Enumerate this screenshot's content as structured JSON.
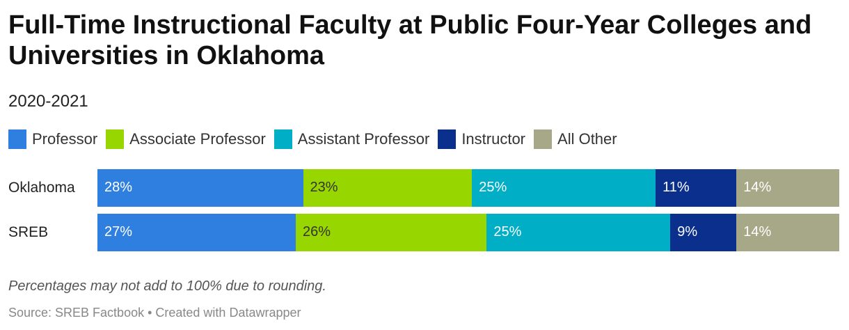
{
  "title": "Full-Time Instructional Faculty at Public Four-Year Colleges and Universities in Oklahoma",
  "subtitle": "2020-2021",
  "note": "Percentages may not add to 100% due to rounding.",
  "source": "Source: SREB Factbook • Created with Datawrapper",
  "chart_data": {
    "type": "bar",
    "stacked": true,
    "orientation": "horizontal",
    "normalized_to_100": true,
    "categories": [
      "Oklahoma",
      "SREB"
    ],
    "series": [
      {
        "name": "Professor",
        "color": "#2e7fdf",
        "label_color": "#ffffff",
        "values": [
          28,
          27
        ]
      },
      {
        "name": "Associate Professor",
        "color": "#98d600",
        "label_color": "#333333",
        "values": [
          23,
          26
        ]
      },
      {
        "name": "Assistant Professor",
        "color": "#00aec6",
        "label_color": "#ffffff",
        "values": [
          25,
          25
        ]
      },
      {
        "name": "Instructor",
        "color": "#0a2f8c",
        "label_color": "#ffffff",
        "values": [
          11,
          9
        ]
      },
      {
        "name": "All Other",
        "color": "#a6a888",
        "label_color": "#ffffff",
        "values": [
          14,
          14
        ]
      }
    ],
    "legend_position": "top-left",
    "grid": false
  }
}
